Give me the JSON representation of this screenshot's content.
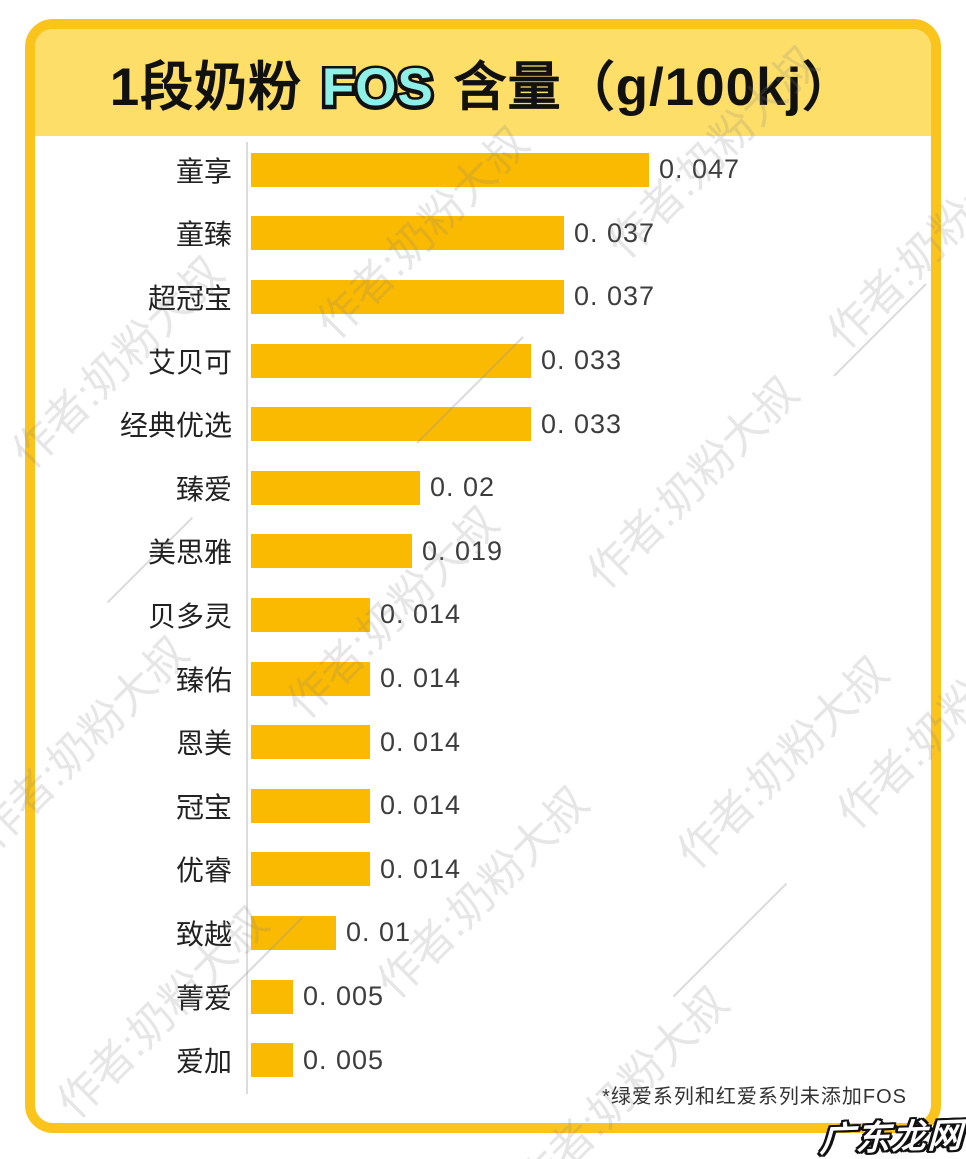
{
  "title": {
    "prefix": "1段奶粉 ",
    "highlight": "FOS",
    "suffix": " 含量（g/100kj）"
  },
  "colors": {
    "card_border": "#FBC41D",
    "header_bg": "#FDDE68",
    "bar": "#FBBA02",
    "highlight_text": "#8FF0E8",
    "axis_line": "#DCDCDC"
  },
  "chart_data": {
    "type": "bar",
    "orientation": "horizontal",
    "title": "1段奶粉FOS含量（g/100kj）",
    "xlabel": "",
    "ylabel": "",
    "xlim": [
      0,
      0.055
    ],
    "grid": false,
    "legend": false,
    "categories": [
      "童享",
      "童臻",
      "超冠宝",
      "艾贝可",
      "经典优选",
      "臻爱",
      "美思雅",
      "贝多灵",
      "臻佑",
      "恩美",
      "冠宝",
      "优睿",
      "致越",
      "菁爱",
      "爱加"
    ],
    "values": [
      0.047,
      0.037,
      0.037,
      0.033,
      0.033,
      0.02,
      0.019,
      0.014,
      0.014,
      0.014,
      0.014,
      0.014,
      0.01,
      0.005,
      0.005
    ],
    "value_labels": [
      "0. 047",
      "0. 037",
      "0. 037",
      "0. 033",
      "0. 033",
      "0. 02",
      "0. 019",
      "0. 014",
      "0. 014",
      "0. 014",
      "0. 014",
      "0. 014",
      "0. 01",
      "0. 005",
      "0. 005"
    ],
    "bar_color": "#FBBA02"
  },
  "footnote": "*绿爱系列和红爱系列未添加FOS",
  "watermark": {
    "text": "作者:奶粉大叔"
  },
  "logo": "广东龙网"
}
